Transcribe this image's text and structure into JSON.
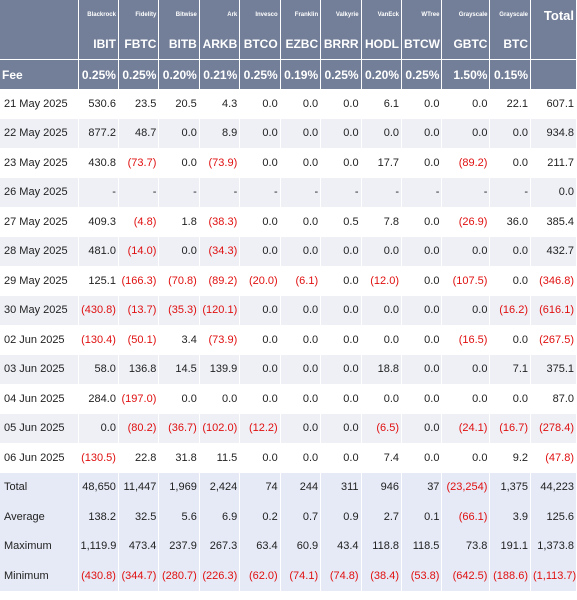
{
  "header": {
    "issuers": [
      "Blackrock",
      "Fidelity",
      "Bitwise",
      "Ark",
      "Invesco",
      "Franklin",
      "Valkyrie",
      "VanEck",
      "WTree",
      "Grayscale",
      "Grayscale"
    ],
    "tickers": [
      "IBIT",
      "FBTC",
      "BITB",
      "ARKB",
      "BTCO",
      "EZBC",
      "BRRR",
      "HODL",
      "BTCW",
      "GBTC",
      "BTC"
    ],
    "total": "Total",
    "fee_label": "Fee",
    "fees": [
      "0.25%",
      "0.25%",
      "0.20%",
      "0.21%",
      "0.25%",
      "0.19%",
      "0.25%",
      "0.20%",
      "0.25%",
      "1.50%",
      "0.15%"
    ]
  },
  "table": {
    "rows": [
      {
        "label": "21 May 2025",
        "cells": [
          "530.6",
          "23.5",
          "20.5",
          "4.3",
          "0.0",
          "0.0",
          "0.0",
          "6.1",
          "0.0",
          "0.0",
          "22.1",
          "607.1"
        ]
      },
      {
        "label": "22 May 2025",
        "cells": [
          "877.2",
          "48.7",
          "0.0",
          "8.9",
          "0.0",
          "0.0",
          "0.0",
          "0.0",
          "0.0",
          "0.0",
          "0.0",
          "934.8"
        ]
      },
      {
        "label": "23 May 2025",
        "cells": [
          "430.8",
          "(73.7)",
          "0.0",
          "(73.9)",
          "0.0",
          "0.0",
          "0.0",
          "17.7",
          "0.0",
          "(89.2)",
          "0.0",
          "211.7"
        ]
      },
      {
        "label": "26 May 2025",
        "cells": [
          "-",
          "-",
          "-",
          "-",
          "-",
          "-",
          "-",
          "-",
          "-",
          "-",
          "-",
          "0.0"
        ]
      },
      {
        "label": "27 May 2025",
        "cells": [
          "409.3",
          "(4.8)",
          "1.8",
          "(38.3)",
          "0.0",
          "0.0",
          "0.5",
          "7.8",
          "0.0",
          "(26.9)",
          "36.0",
          "385.4"
        ]
      },
      {
        "label": "28 May 2025",
        "cells": [
          "481.0",
          "(14.0)",
          "0.0",
          "(34.3)",
          "0.0",
          "0.0",
          "0.0",
          "0.0",
          "0.0",
          "0.0",
          "0.0",
          "432.7"
        ]
      },
      {
        "label": "29 May 2025",
        "cells": [
          "125.1",
          "(166.3)",
          "(70.8)",
          "(89.2)",
          "(20.0)",
          "(6.1)",
          "0.0",
          "(12.0)",
          "0.0",
          "(107.5)",
          "0.0",
          "(346.8)"
        ]
      },
      {
        "label": "30 May 2025",
        "cells": [
          "(430.8)",
          "(13.7)",
          "(35.3)",
          "(120.1)",
          "0.0",
          "0.0",
          "0.0",
          "0.0",
          "0.0",
          "0.0",
          "(16.2)",
          "(616.1)"
        ]
      },
      {
        "label": "02 Jun 2025",
        "cells": [
          "(130.4)",
          "(50.1)",
          "3.4",
          "(73.9)",
          "0.0",
          "0.0",
          "0.0",
          "0.0",
          "0.0",
          "(16.5)",
          "0.0",
          "(267.5)"
        ]
      },
      {
        "label": "03 Jun 2025",
        "cells": [
          "58.0",
          "136.8",
          "14.5",
          "139.9",
          "0.0",
          "0.0",
          "0.0",
          "18.8",
          "0.0",
          "0.0",
          "7.1",
          "375.1"
        ]
      },
      {
        "label": "04 Jun 2025",
        "cells": [
          "284.0",
          "(197.0)",
          "0.0",
          "0.0",
          "0.0",
          "0.0",
          "0.0",
          "0.0",
          "0.0",
          "0.0",
          "0.0",
          "87.0"
        ]
      },
      {
        "label": "05 Jun 2025",
        "cells": [
          "0.0",
          "(80.2)",
          "(36.7)",
          "(102.0)",
          "(12.2)",
          "0.0",
          "0.0",
          "(6.5)",
          "0.0",
          "(24.1)",
          "(16.7)",
          "(278.4)"
        ]
      },
      {
        "label": "06 Jun 2025",
        "cells": [
          "(130.5)",
          "22.8",
          "31.8",
          "11.5",
          "0.0",
          "0.0",
          "0.0",
          "7.4",
          "0.0",
          "0.0",
          "9.2",
          "(47.8)"
        ]
      }
    ],
    "summary": [
      {
        "label": "Total",
        "cells": [
          "48,650",
          "11,447",
          "1,969",
          "2,424",
          "74",
          "244",
          "311",
          "946",
          "37",
          "(23,254)",
          "1,375",
          "44,223"
        ]
      },
      {
        "label": "Average",
        "cells": [
          "138.2",
          "32.5",
          "5.6",
          "6.9",
          "0.2",
          "0.7",
          "0.9",
          "2.7",
          "0.1",
          "(66.1)",
          "3.9",
          "125.6"
        ]
      },
      {
        "label": "Maximum",
        "cells": [
          "1,119.9",
          "473.4",
          "237.9",
          "267.3",
          "63.4",
          "60.9",
          "43.4",
          "118.8",
          "118.5",
          "73.8",
          "191.1",
          "1,373.8"
        ]
      },
      {
        "label": "Minimum",
        "cells": [
          "(430.8)",
          "(344.7)",
          "(280.7)",
          "(226.3)",
          "(62.0)",
          "(74.1)",
          "(74.8)",
          "(38.4)",
          "(53.8)",
          "(642.5)",
          "(188.6)",
          "(1,113.7)"
        ]
      }
    ]
  }
}
